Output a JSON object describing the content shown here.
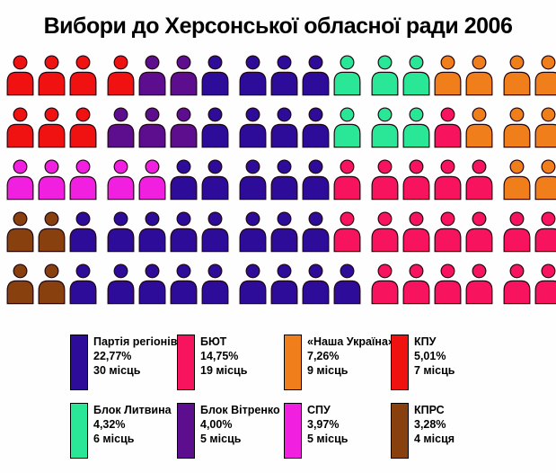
{
  "title": "Вибори до Херсонської обласної ради 2006",
  "chart_data": {
    "type": "pictograph",
    "title": "Вибори до Херсонської обласної ради 2006",
    "total_seats": 85,
    "icons_per_row": 17,
    "icon": "person-icon",
    "parties": [
      {
        "key": "navy",
        "name": "Партія регіонів",
        "percent_label": "22,77%",
        "percent": 22.77,
        "seats": 30,
        "seats_label": "30 місць",
        "color": "#2D0C9A"
      },
      {
        "key": "crimson",
        "name": "БЮТ",
        "percent_label": "14,75%",
        "percent": 14.75,
        "seats": 19,
        "seats_label": "19 місць",
        "color": "#F8135F"
      },
      {
        "key": "orange",
        "name": "«Наша Україна»",
        "percent_label": "7,26%",
        "percent": 7.26,
        "seats": 9,
        "seats_label": "9 місць",
        "color": "#EF7E1B"
      },
      {
        "key": "red",
        "name": "КПУ",
        "percent_label": "5,01%",
        "percent": 5.01,
        "seats": 7,
        "seats_label": "7 місць",
        "color": "#F01111"
      },
      {
        "key": "green",
        "name": "Блок Литвина",
        "percent_label": "4,32%",
        "percent": 4.32,
        "seats": 6,
        "seats_label": "6 місць",
        "color": "#29E796"
      },
      {
        "key": "purple",
        "name": "Блок Вітренко",
        "percent_label": "4,00%",
        "percent": 4.0,
        "seats": 5,
        "seats_label": "5 місць",
        "color": "#5C0E8E"
      },
      {
        "key": "magenta",
        "name": "СПУ",
        "percent_label": "3,97%",
        "percent": 3.97,
        "seats": 5,
        "seats_label": "5 місць",
        "color": "#F11FE0"
      },
      {
        "key": "brown",
        "name": "КПРС",
        "percent_label": "3,28%",
        "percent": 3.28,
        "seats": 4,
        "seats_label": "4 місця",
        "color": "#87400E"
      }
    ],
    "rows": [
      [
        "red",
        "red",
        "red",
        "red",
        "purple",
        "purple",
        "navy",
        "navy",
        "navy",
        "navy",
        "green",
        "green",
        "green",
        "orange",
        "orange",
        "orange",
        "orange"
      ],
      [
        "red",
        "red",
        "red",
        "purple",
        "purple",
        "purple",
        "navy",
        "navy",
        "navy",
        "navy",
        "green",
        "green",
        "green",
        "crimson",
        "orange",
        "orange",
        "orange"
      ],
      [
        "magenta",
        "magenta",
        "magenta",
        "magenta",
        "magenta",
        "navy",
        "navy",
        "navy",
        "navy",
        "navy",
        "crimson",
        "crimson",
        "crimson",
        "crimson",
        "crimson",
        "orange",
        "orange"
      ],
      [
        "brown",
        "brown",
        "navy",
        "navy",
        "navy",
        "navy",
        "navy",
        "navy",
        "navy",
        "navy",
        "crimson",
        "crimson",
        "crimson",
        "crimson",
        "crimson",
        "crimson",
        "crimson"
      ],
      [
        "brown",
        "brown",
        "navy",
        "navy",
        "navy",
        "navy",
        "navy",
        "navy",
        "navy",
        "navy",
        "navy",
        "crimson",
        "crimson",
        "crimson",
        "crimson",
        "crimson",
        "crimson"
      ]
    ],
    "group_gap_after_positions": [
      3,
      7,
      11,
      15
    ]
  },
  "legend": {
    "row1_keys": [
      "navy",
      "crimson",
      "orange",
      "red"
    ],
    "row2_keys": [
      "green",
      "purple",
      "magenta",
      "brown"
    ]
  }
}
